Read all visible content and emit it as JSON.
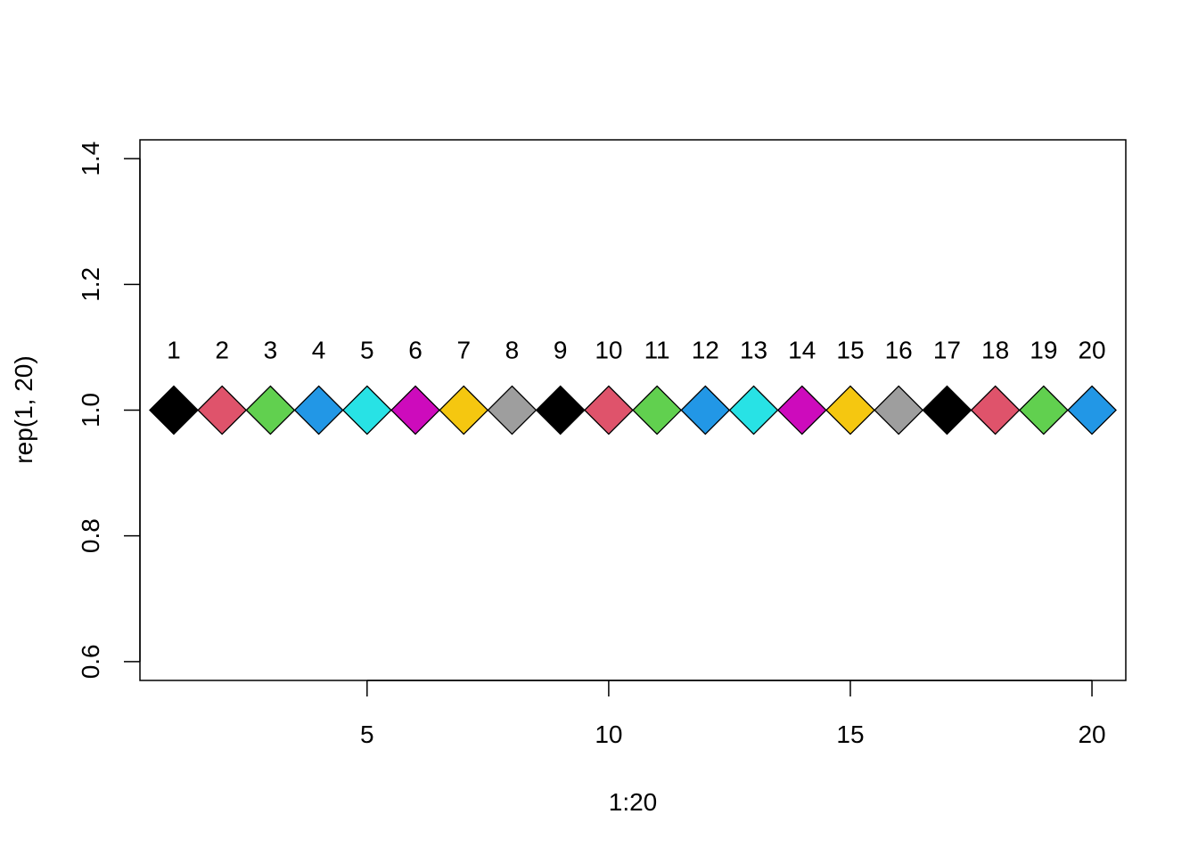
{
  "chart_data": {
    "type": "scatter",
    "title": "",
    "xlabel": "1:20",
    "ylabel": "rep(1, 20)",
    "xlim": [
      0.3,
      20.7
    ],
    "ylim": [
      0.57,
      1.43
    ],
    "x_ticks": [
      5,
      10,
      15,
      20
    ],
    "y_ticks": [
      0.6,
      0.8,
      1.0,
      1.2,
      1.4
    ],
    "x_tick_labels": [
      "5",
      "10",
      "15",
      "20"
    ],
    "y_tick_labels": [
      "0.6",
      "0.8",
      "1.0",
      "1.2",
      "1.4"
    ],
    "grid": false,
    "legend": "none",
    "marker": "filled-diamond",
    "x": [
      1,
      2,
      3,
      4,
      5,
      6,
      7,
      8,
      9,
      10,
      11,
      12,
      13,
      14,
      15,
      16,
      17,
      18,
      19,
      20
    ],
    "y": [
      1,
      1,
      1,
      1,
      1,
      1,
      1,
      1,
      1,
      1,
      1,
      1,
      1,
      1,
      1,
      1,
      1,
      1,
      1,
      1
    ],
    "point_labels": [
      "1",
      "2",
      "3",
      "4",
      "5",
      "6",
      "7",
      "8",
      "9",
      "10",
      "11",
      "12",
      "13",
      "14",
      "15",
      "16",
      "17",
      "18",
      "19",
      "20"
    ],
    "point_colors": [
      "#000000",
      "#DF536B",
      "#61D04F",
      "#2297E6",
      "#28E2E5",
      "#CD0BBC",
      "#F5C710",
      "#9E9E9E",
      "#000000",
      "#DF536B",
      "#61D04F",
      "#2297E6",
      "#28E2E5",
      "#CD0BBC",
      "#F5C710",
      "#9E9E9E",
      "#000000",
      "#DF536B",
      "#61D04F",
      "#2297E6"
    ]
  }
}
